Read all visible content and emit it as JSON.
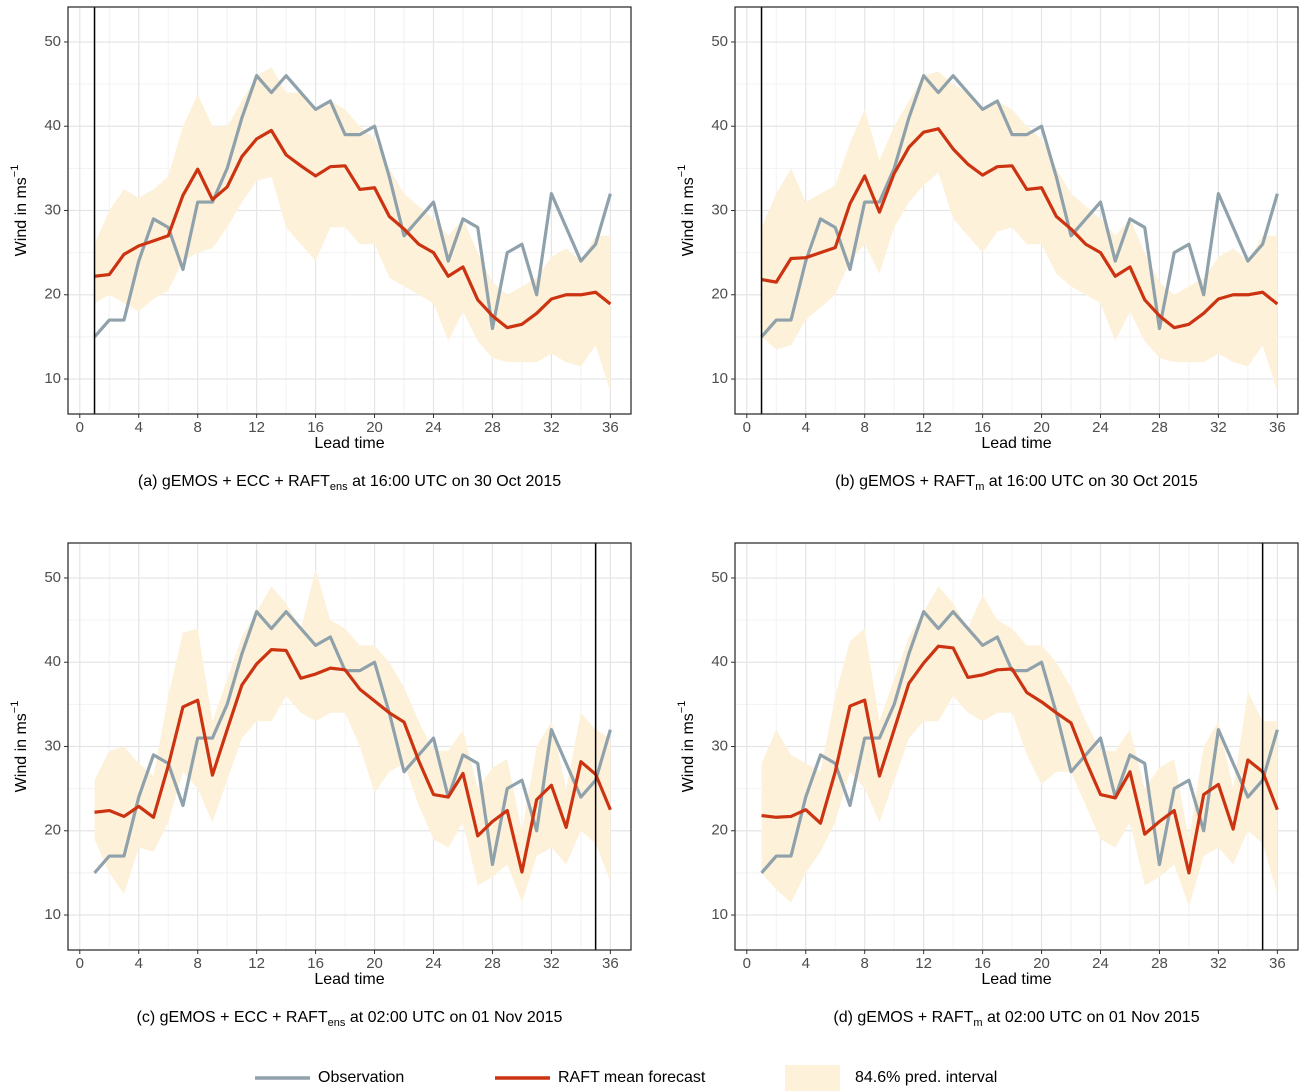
{
  "charts_shared": {
    "x": [
      1,
      2,
      3,
      4,
      5,
      6,
      7,
      8,
      9,
      10,
      11,
      12,
      13,
      14,
      15,
      16,
      17,
      18,
      19,
      20,
      21,
      22,
      23,
      24,
      25,
      26,
      27,
      28,
      29,
      30,
      31,
      32,
      33,
      34,
      35,
      36
    ],
    "observation": [
      15,
      17,
      17,
      24,
      29,
      28,
      23,
      31,
      31,
      35,
      41,
      46,
      44,
      46,
      44,
      42,
      43,
      39,
      39,
      40,
      34,
      27,
      29,
      31,
      24,
      29,
      28,
      16,
      25,
      26,
      20,
      32,
      28,
      24,
      26,
      32
    ]
  },
  "legend": [
    {
      "name": "Observation",
      "color": "#8fa1aa"
    },
    {
      "name": "RAFT mean forecast",
      "color": "#cc3311"
    },
    {
      "name": "84.6% pred. interval",
      "color": "#fdf1da"
    }
  ],
  "chart_data": [
    {
      "type": "line",
      "caption": {
        "prefix": "(a) gEMOS + ECC + RAFT",
        "sub": "ens",
        "suffix": " at 16:00 UTC on 30 Oct 2015"
      },
      "x_label": "Lead time",
      "y_label": {
        "text": "Wind in ms",
        "sup": "−1"
      },
      "xlim": [
        -0.8,
        37.4
      ],
      "ylim": [
        5.85,
        54.15
      ],
      "xticks": [
        0,
        4,
        8,
        12,
        16,
        20,
        24,
        28,
        32,
        36
      ],
      "yticks": [
        10,
        20,
        30,
        40,
        50
      ],
      "grid": true,
      "vline": 1,
      "forecast": [
        22.2,
        22.4,
        24.8,
        25.8,
        26.4,
        27,
        31.8,
        34.9,
        31.3,
        32.8,
        36.4,
        38.5,
        39.5,
        36.6,
        35.3,
        34.1,
        35.2,
        35.3,
        32.5,
        32.7,
        29.3,
        27.8,
        26,
        25,
        22.2,
        23.3,
        19.4,
        17.5,
        16.1,
        16.5,
        17.8,
        19.5,
        20,
        20,
        20.3,
        18.9
      ],
      "lower": [
        19,
        20,
        19,
        18,
        19.5,
        20.5,
        24,
        25,
        25.5,
        28,
        31,
        33.5,
        34,
        28,
        26,
        24,
        28,
        28,
        26,
        26,
        22,
        21,
        20,
        19,
        14.5,
        18,
        14.5,
        12.5,
        12,
        12,
        12,
        13,
        12,
        11.5,
        14,
        8.5
      ],
      "upper": [
        26,
        30,
        32.5,
        31.5,
        32.5,
        34,
        40,
        43.8,
        40,
        40,
        43,
        46,
        47,
        44,
        44,
        42,
        43,
        42,
        40,
        38.5,
        35,
        32,
        30.5,
        29,
        27,
        29,
        25,
        21.5,
        20,
        21,
        22,
        24.5,
        25.5,
        24,
        27,
        27
      ]
    },
    {
      "type": "line",
      "caption": {
        "prefix": "(b) gEMOS + RAFT",
        "sub": "m",
        "suffix": " at 16:00 UTC on 30 Oct 2015"
      },
      "x_label": "Lead time",
      "y_label": {
        "text": "Wind in ms",
        "sup": "−1"
      },
      "xlim": [
        -0.8,
        37.4
      ],
      "ylim": [
        5.85,
        54.15
      ],
      "xticks": [
        0,
        4,
        8,
        12,
        16,
        20,
        24,
        28,
        32,
        36
      ],
      "yticks": [
        10,
        20,
        30,
        40,
        50
      ],
      "grid": true,
      "vline": 1,
      "forecast": [
        21.8,
        21.5,
        24.3,
        24.4,
        25,
        25.6,
        30.8,
        34.1,
        29.8,
        34.4,
        37.5,
        39.3,
        39.7,
        37.3,
        35.5,
        34.2,
        35.2,
        35.3,
        32.5,
        32.7,
        29.3,
        27.8,
        26,
        25,
        22.2,
        23.3,
        19.4,
        17.5,
        16.1,
        16.5,
        17.8,
        19.5,
        20,
        20,
        20.3,
        18.9
      ],
      "lower": [
        15,
        13.5,
        14,
        17,
        18.5,
        20,
        24,
        26,
        22.5,
        28,
        31,
        33,
        34.5,
        29,
        27,
        25,
        27.5,
        28,
        26,
        26,
        22.5,
        21,
        20,
        19,
        14.5,
        18,
        14.5,
        12.5,
        12,
        12,
        12,
        13,
        12,
        11.5,
        14,
        8.5
      ],
      "upper": [
        28,
        32,
        35,
        31,
        32,
        33,
        38,
        42,
        36,
        40,
        43,
        46,
        46.5,
        45,
        44,
        42,
        43,
        42,
        40,
        38.5,
        35,
        32,
        30.5,
        29,
        27,
        29,
        25,
        21.5,
        20,
        21,
        22,
        24.5,
        25.5,
        24,
        27,
        27
      ]
    },
    {
      "type": "line",
      "caption": {
        "prefix": "(c) gEMOS + ECC + RAFT",
        "sub": "ens",
        "suffix": " at 02:00 UTC on 01 Nov 2015"
      },
      "x_label": "Lead time",
      "y_label": {
        "text": "Wind in ms",
        "sup": "−1"
      },
      "xlim": [
        -0.8,
        37.4
      ],
      "ylim": [
        5.85,
        54.15
      ],
      "xticks": [
        0,
        4,
        8,
        12,
        16,
        20,
        24,
        28,
        32,
        36
      ],
      "yticks": [
        10,
        20,
        30,
        40,
        50
      ],
      "grid": true,
      "vline": 35,
      "forecast": [
        22.2,
        22.4,
        21.7,
        22.9,
        21.6,
        27.7,
        34.7,
        35.5,
        26.6,
        32,
        37.3,
        39.8,
        41.5,
        41.4,
        38.1,
        38.6,
        39.3,
        39.1,
        36.8,
        35.4,
        34,
        32.9,
        28.3,
        24.3,
        24,
        26.8,
        19.4,
        21.1,
        22.4,
        15.1,
        23.7,
        25.4,
        20.4,
        28.2,
        26.7,
        22.5
      ],
      "lower": [
        19,
        15,
        12.5,
        18,
        17.5,
        21,
        27,
        25,
        21,
        26,
        31,
        33,
        33,
        36,
        34,
        33,
        34,
        34,
        30,
        24.5,
        27,
        28,
        23,
        19,
        18,
        21,
        13.5,
        14.5,
        16,
        11.5,
        17,
        18,
        16,
        20,
        18.5,
        14
      ],
      "upper": [
        26,
        29.5,
        30,
        28,
        26.5,
        36,
        43.5,
        44,
        33,
        38,
        43,
        46,
        49,
        47,
        44,
        51,
        45,
        44,
        42,
        42,
        40,
        37,
        33,
        29.5,
        29.5,
        32,
        25,
        27.5,
        28.5,
        20,
        30,
        33,
        25,
        34,
        32,
        31
      ]
    },
    {
      "type": "line",
      "caption": {
        "prefix": "(d) gEMOS + RAFT",
        "sub": "m",
        "suffix": " at 02:00 UTC on 01 Nov 2015"
      },
      "x_label": "Lead time",
      "y_label": {
        "text": "Wind in ms",
        "sup": "−1"
      },
      "xlim": [
        -0.8,
        37.4
      ],
      "ylim": [
        5.85,
        54.15
      ],
      "xticks": [
        0,
        4,
        8,
        12,
        16,
        20,
        24,
        28,
        32,
        36
      ],
      "yticks": [
        10,
        20,
        30,
        40,
        50
      ],
      "grid": true,
      "vline": 35,
      "forecast": [
        21.8,
        21.6,
        21.7,
        22.5,
        20.9,
        27,
        34.8,
        35.5,
        26.5,
        32,
        37.5,
        39.9,
        41.9,
        41.7,
        38.2,
        38.5,
        39.1,
        39.2,
        36.4,
        35.3,
        34,
        32.8,
        28.3,
        24.3,
        23.9,
        27,
        19.6,
        21.1,
        22.4,
        15,
        24.3,
        25.5,
        20.2,
        28.4,
        27,
        22.5
      ],
      "lower": [
        15,
        13,
        11.5,
        15,
        17.5,
        21,
        27,
        25,
        21,
        26,
        31,
        33,
        33,
        36,
        34,
        33,
        34,
        34,
        29,
        25.5,
        27,
        27,
        23,
        19,
        18,
        21,
        13.5,
        14.5,
        16,
        11,
        17,
        18,
        16,
        20,
        18.5,
        12.5
      ],
      "upper": [
        28,
        32,
        29,
        28,
        27,
        36,
        42.5,
        44,
        33,
        38,
        43,
        46,
        49,
        47,
        44,
        48,
        45,
        44,
        42,
        42,
        40,
        37,
        33,
        29.5,
        29.5,
        32,
        25,
        27.5,
        28.5,
        19,
        30,
        33,
        25,
        36.5,
        33,
        33
      ]
    }
  ]
}
